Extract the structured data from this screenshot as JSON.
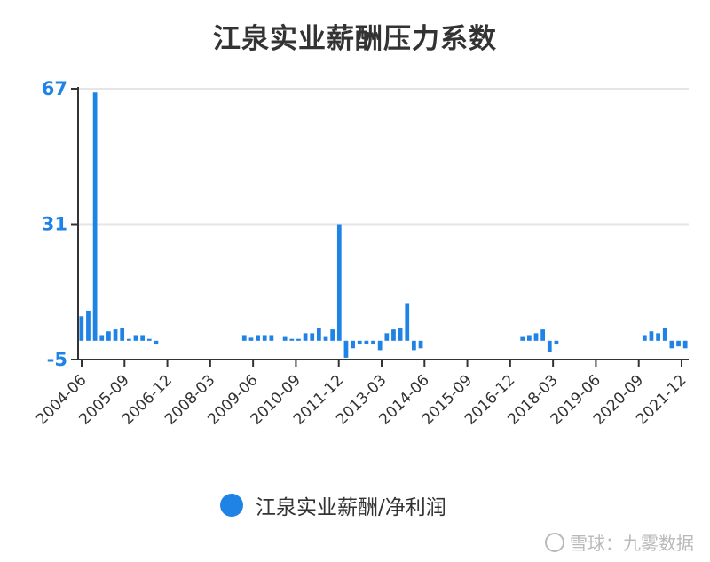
{
  "chart_data": {
    "type": "bar",
    "title": "江泉实业薪酬压力系数",
    "ylim": [
      -5,
      67
    ],
    "yticks": [
      67,
      31,
      -5
    ],
    "grid": true,
    "legend_position": "bottom",
    "x_tick_labels": [
      "2004-06",
      "2005-09",
      "2006-12",
      "2008-03",
      "2009-06",
      "2010-09",
      "2011-12",
      "2013-03",
      "2014-06",
      "2015-09",
      "2016-12",
      "2018-03",
      "2019-06",
      "2020-09",
      "2021-12"
    ],
    "color": "#1f83e6",
    "series": [
      {
        "name": "江泉实业薪酬/净利润",
        "values": [
          6.5,
          8,
          66,
          1.5,
          2.5,
          3,
          3.5,
          0.5,
          1.5,
          1.5,
          0.5,
          -1,
          null,
          null,
          null,
          null,
          null,
          null,
          null,
          null,
          null,
          null,
          null,
          null,
          1.5,
          0.8,
          1.5,
          1.5,
          1.5,
          null,
          1,
          0.5,
          0.5,
          2,
          2,
          3.5,
          1,
          3,
          31,
          -4.5,
          -2,
          -1,
          -1,
          -1,
          -2.5,
          2,
          3,
          3.5,
          10,
          -2.5,
          -2,
          null,
          null,
          null,
          null,
          null,
          null,
          null,
          null,
          null,
          null,
          null,
          null,
          null,
          null,
          1,
          1.5,
          2,
          3,
          -3,
          -1,
          null,
          null,
          null,
          null,
          null,
          null,
          null,
          null,
          null,
          null,
          null,
          null,
          1.5,
          2.5,
          2,
          3.5,
          -2,
          -1.5,
          -2
        ]
      }
    ]
  },
  "legend": {
    "label": "江泉实业薪酬/净利润"
  },
  "watermark": {
    "text": "雪球：九雾数据"
  }
}
